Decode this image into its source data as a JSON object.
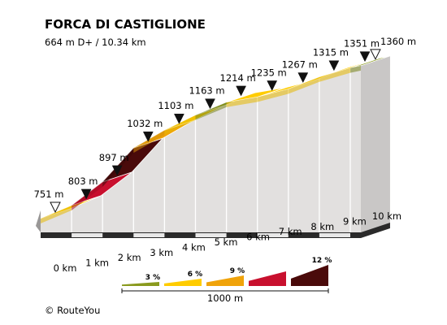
{
  "title": "FORCA DI CASTIGLIONE",
  "subtitle": "664 m D+ / 10.34 km",
  "footer": "© RouteYou",
  "chart_data": {
    "type": "area",
    "title": "FORCA DI CASTIGLIONE",
    "subtitle": "664 m D+ / 10.34 km",
    "x_unit": "km",
    "y_unit": "m",
    "points": [
      {
        "km": 0,
        "ele": 751,
        "label": "751 m",
        "marker": "start"
      },
      {
        "km": 1,
        "ele": 803,
        "label": "803 m",
        "marker": "km"
      },
      {
        "km": 2,
        "ele": 897,
        "label": "897 m",
        "marker": "km"
      },
      {
        "km": 3,
        "ele": 1032,
        "label": "1032 m",
        "marker": "km"
      },
      {
        "km": 4,
        "ele": 1103,
        "label": "1103 m",
        "marker": "km"
      },
      {
        "km": 5,
        "ele": 1163,
        "label": "1163 m",
        "marker": "km"
      },
      {
        "km": 6,
        "ele": 1214,
        "label": "1214 m",
        "marker": "km"
      },
      {
        "km": 7,
        "ele": 1235,
        "label": "1235 m",
        "marker": "km"
      },
      {
        "km": 8,
        "ele": 1267,
        "label": "1267 m",
        "marker": "km"
      },
      {
        "km": 9,
        "ele": 1315,
        "label": "1315 m",
        "marker": "km"
      },
      {
        "km": 10,
        "ele": 1351,
        "label": "1351 m",
        "marker": "km"
      },
      {
        "km": 10.34,
        "ele": 1360,
        "label": "1360 m",
        "marker": "end"
      }
    ],
    "segment_colors": [
      "#ffcc00",
      "#c8102e",
      "#4a0a0a",
      "#f0a30a",
      "#ffcc00",
      "#8a9a1e",
      "#ffcc00",
      "#ffcc00",
      "#ffcc00",
      "#ffcc00",
      "#8a9a1e"
    ],
    "segment_shades": [
      "#e6b800",
      "#a30d25",
      "#3a0808",
      "#d48f08",
      "#e6b800",
      "#748216",
      "#e6b800",
      "#e6b800",
      "#e6b800",
      "#e6b800",
      "#748216"
    ],
    "x_tick_labels": [
      "0 km",
      "1 km",
      "2 km",
      "3 km",
      "4 km",
      "5 km",
      "6 km",
      "7 km",
      "8 km",
      "9 km",
      "10 km"
    ],
    "legend": {
      "items": [
        {
          "label": "3 %",
          "color": "#8a9a1e"
        },
        {
          "label": "6 %",
          "color": "#ffcc00"
        },
        {
          "label": "9 %",
          "color": "#f0a30a"
        },
        {
          "label": "",
          "color": "#c8102e"
        },
        {
          "label": "12 %",
          "color": "#4a0a0a"
        }
      ],
      "scale_label": "1000 m"
    }
  }
}
